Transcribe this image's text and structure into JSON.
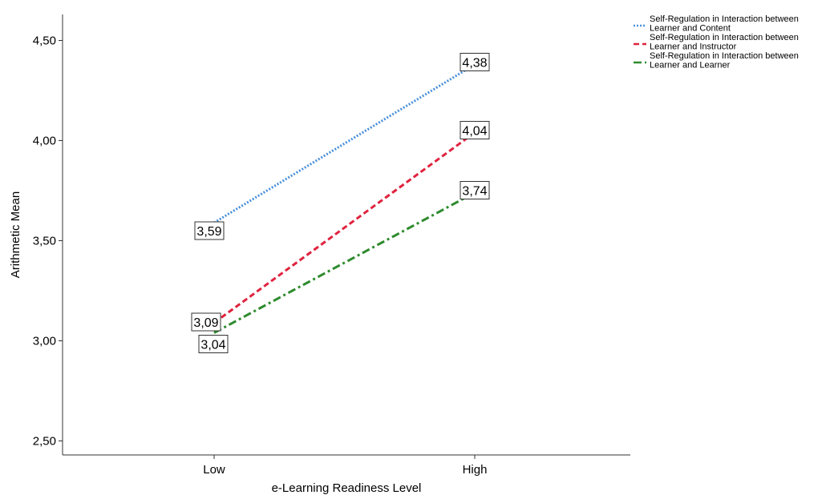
{
  "chart_data": {
    "type": "line",
    "categories": [
      "Low",
      "High"
    ],
    "xlabel": "e-Learning Readiness Level",
    "ylabel": "Arithmetic Mean",
    "ylim": [
      2.43,
      4.63
    ],
    "yticks": [
      2.5,
      3.0,
      3.5,
      4.0,
      4.5
    ],
    "ytick_labels": [
      "2,50",
      "3,00",
      "3,50",
      "4,00",
      "4,50"
    ],
    "grid": false,
    "legend_position": "top-right",
    "series": [
      {
        "name_lines": [
          "Self-Regulation in Interaction between",
          "Learner and Content"
        ],
        "values": [
          3.59,
          4.38
        ],
        "labels": [
          "3,59",
          "4,38"
        ],
        "color": "#4a90d9",
        "dash": "dotted"
      },
      {
        "name_lines": [
          "Self-Regulation in Interaction between",
          "Learner and Instructor"
        ],
        "values": [
          3.09,
          4.04
        ],
        "labels": [
          "3,09",
          "4,04"
        ],
        "color": "#e0233e",
        "dash": "dashed"
      },
      {
        "name_lines": [
          "Self-Regulation in Interaction between",
          "Learner and Learner"
        ],
        "values": [
          3.04,
          3.74
        ],
        "labels": [
          "3,04",
          "3,74"
        ],
        "color": "#2e8b2e",
        "dash": "dashdot"
      }
    ]
  }
}
